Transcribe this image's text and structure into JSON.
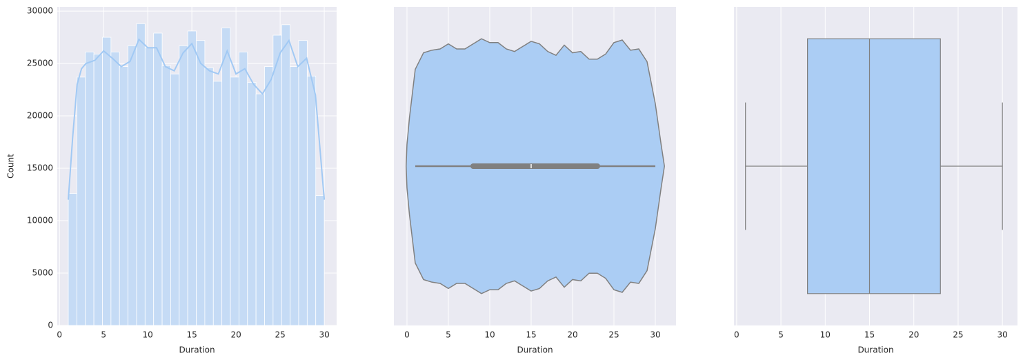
{
  "chart_data": [
    {
      "type": "histogram",
      "x_label": "Duration",
      "y_label": "Count",
      "color": "#c5dbf5",
      "line_color": "#a1c9f4",
      "bins": [
        1,
        1.9667,
        2.9333,
        3.9,
        4.8667,
        5.8333,
        6.8,
        7.7667,
        8.7333,
        9.7,
        10.6667,
        11.6333,
        12.6,
        13.5667,
        14.5333,
        15.5,
        16.4667,
        17.4333,
        18.4,
        19.3667,
        20.3333,
        21.3,
        22.2667,
        23.2333,
        24.2,
        25.1667,
        26.1333,
        27.1,
        28.0667,
        29.0333,
        30
      ],
      "values": [
        12600,
        23700,
        26100,
        25900,
        27500,
        26100,
        24700,
        26700,
        28800,
        26500,
        27900,
        24800,
        24000,
        26700,
        28100,
        27200,
        24600,
        23300,
        28400,
        23700,
        26100,
        23200,
        22100,
        24700,
        27700,
        28700,
        24700,
        27200,
        23800,
        12400
      ],
      "kde": {
        "x": [
          1,
          1.5,
          2,
          2.5,
          3,
          4,
          5,
          6,
          7,
          8,
          9,
          10,
          11,
          12,
          13,
          14,
          15,
          16,
          17,
          18,
          19,
          20,
          21,
          22,
          23,
          24,
          25,
          26,
          27,
          28,
          29,
          30
        ],
        "values": [
          12000,
          18000,
          23000,
          24500,
          25000,
          25300,
          26200,
          25500,
          24700,
          25200,
          27300,
          26500,
          26500,
          24700,
          24300,
          26000,
          26900,
          25000,
          24300,
          24000,
          26200,
          24000,
          24500,
          23000,
          22100,
          23500,
          26000,
          27200,
          24700,
          25500,
          22000,
          12000
        ]
      },
      "xlim": [
        -0.25,
        31.4
      ],
      "xticks": [
        0,
        5,
        10,
        15,
        20,
        25,
        30
      ],
      "ylim": [
        0,
        30400
      ],
      "yticks": [
        0,
        5000,
        10000,
        15000,
        20000,
        25000,
        30000
      ],
      "grid": true
    },
    {
      "type": "violin",
      "x_label": "Duration",
      "color": "#abcdf4",
      "line_color": "#808080",
      "x": [
        -0.1,
        0,
        0.3,
        1,
        2,
        3,
        4,
        5,
        6,
        7,
        8,
        9,
        10,
        11,
        12,
        13,
        14,
        15,
        16,
        17,
        18,
        19,
        20,
        21,
        22,
        23,
        24,
        25,
        26,
        27,
        28,
        29,
        30,
        30.7,
        31.1
      ],
      "density": [
        0,
        0.17,
        0.38,
        0.76,
        0.89,
        0.91,
        0.92,
        0.96,
        0.92,
        0.92,
        0.96,
        1.0,
        0.97,
        0.97,
        0.92,
        0.9,
        0.94,
        0.98,
        0.96,
        0.9,
        0.87,
        0.95,
        0.89,
        0.9,
        0.84,
        0.84,
        0.88,
        0.97,
        0.99,
        0.91,
        0.92,
        0.82,
        0.49,
        0.17,
        0
      ],
      "quartiles": [
        8,
        15,
        23
      ],
      "whiskers": [
        1,
        30
      ],
      "xlim": [
        -1.58,
        32.5
      ],
      "xticks": [
        0,
        5,
        10,
        15,
        20,
        25,
        30
      ],
      "grid": true
    },
    {
      "type": "box",
      "x_label": "Duration",
      "color": "#abcdf4",
      "line_color": "#808080",
      "quartiles": [
        8,
        15,
        23
      ],
      "whiskers": [
        1,
        30
      ],
      "xlim": [
        -0.3,
        31.7
      ],
      "xticks": [
        0,
        5,
        10,
        15,
        20,
        25,
        30
      ],
      "grid": true
    }
  ]
}
